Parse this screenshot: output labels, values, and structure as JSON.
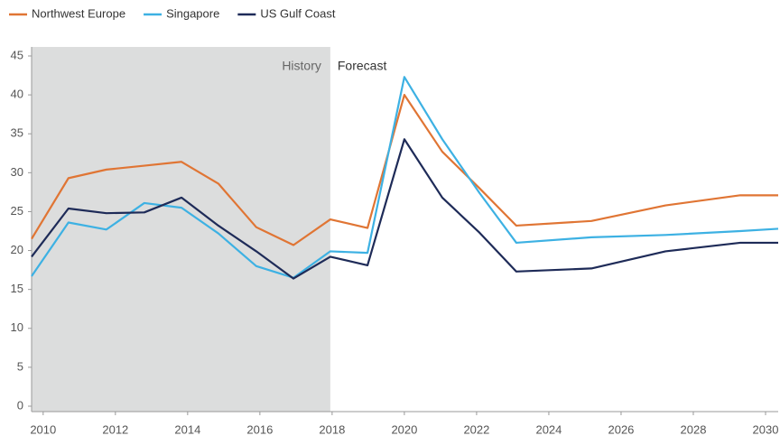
{
  "chart_data": {
    "type": "line",
    "x": [
      2009.68,
      2010.7,
      2011.75,
      2012.8,
      2013.83,
      2014.85,
      2015.9,
      2016.93,
      2017.95,
      2018.98,
      2020.0,
      2021.05,
      2022.08,
      2023.1,
      2025.18,
      2027.23,
      2029.3,
      2030.35
    ],
    "series": [
      {
        "name": "Northwest Europe",
        "color": "#e07534",
        "values": [
          21.5,
          29.3,
          30.4,
          30.9,
          31.4,
          28.6,
          23.0,
          20.7,
          24.0,
          22.9,
          40.0,
          32.7,
          28.0,
          23.2,
          23.8,
          25.8,
          27.1,
          27.1
        ]
      },
      {
        "name": "Singapore",
        "color": "#3db1e3",
        "values": [
          16.7,
          23.6,
          22.7,
          26.1,
          25.5,
          22.2,
          18.0,
          16.5,
          19.9,
          19.7,
          42.3,
          34.3,
          27.4,
          21.0,
          21.7,
          22.0,
          22.5,
          22.8
        ]
      },
      {
        "name": "US Gulf Coast",
        "color": "#1e2b58",
        "values": [
          19.2,
          25.4,
          24.8,
          24.9,
          26.8,
          23.2,
          19.9,
          16.4,
          19.2,
          18.1,
          34.3,
          26.8,
          22.3,
          17.3,
          17.7,
          19.9,
          21.0,
          21.0
        ]
      }
    ],
    "xlim": [
      2009.68,
      2030.35
    ],
    "xticks": [
      2010,
      2012,
      2014,
      2016,
      2018,
      2020,
      2022,
      2024,
      2026,
      2028,
      2030
    ],
    "ylim": [
      0,
      45
    ],
    "yticks": [
      0,
      5,
      10,
      15,
      20,
      25,
      30,
      35,
      40,
      45
    ],
    "grid": false,
    "shaded_region": {
      "x": [
        2009.68,
        2017.95
      ],
      "color": "#dcdddd"
    },
    "annotations": [
      "History",
      "Forecast"
    ],
    "legend": "top-left"
  }
}
